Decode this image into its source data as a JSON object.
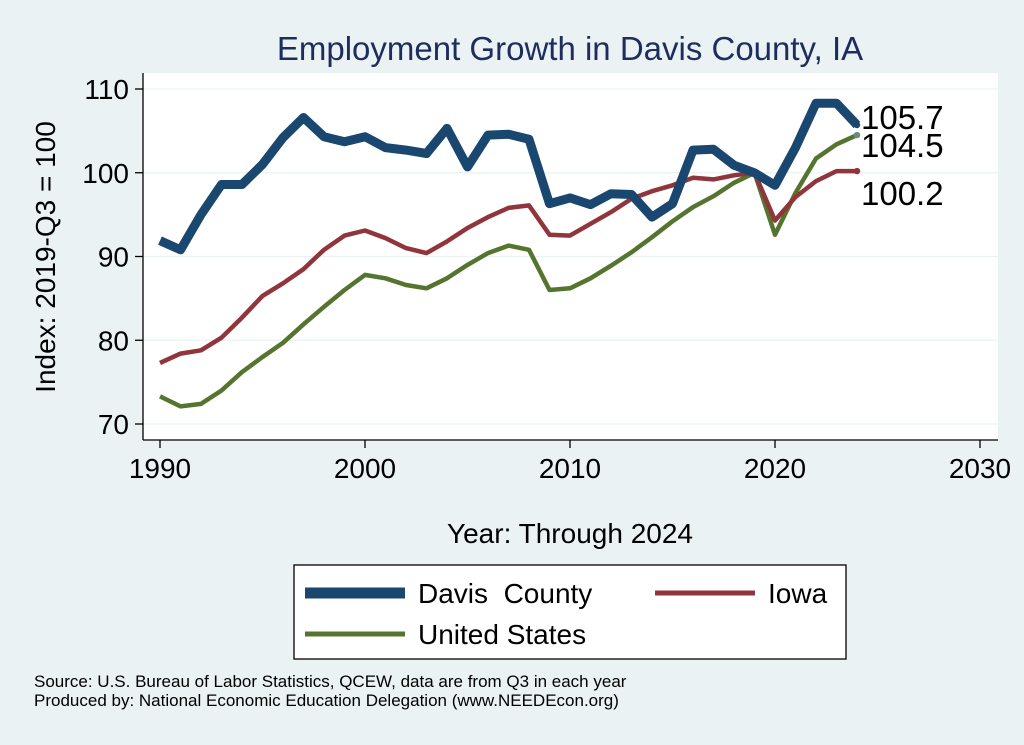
{
  "chart_data": {
    "type": "line",
    "title": "Employment Growth in Davis County, IA",
    "xlabel": "Year: Through 2024",
    "ylabel": "Index: 2019-Q3 = 100",
    "xlim": [
      1990,
      2030
    ],
    "ylim": [
      70,
      110
    ],
    "xticks": [
      1990,
      2000,
      2010,
      2020,
      2030
    ],
    "yticks": [
      70,
      80,
      90,
      100,
      110
    ],
    "grid": true,
    "legend_position": "bottom",
    "x": [
      1990,
      1991,
      1992,
      1993,
      1994,
      1995,
      1996,
      1997,
      1998,
      1999,
      2000,
      2001,
      2002,
      2003,
      2004,
      2005,
      2006,
      2007,
      2008,
      2009,
      2010,
      2011,
      2012,
      2013,
      2014,
      2015,
      2016,
      2017,
      2018,
      2019,
      2020,
      2021,
      2022,
      2023,
      2024
    ],
    "series": [
      {
        "name": "Davis  County",
        "color": "#1a476f",
        "end_label": "105.7",
        "values": [
          91.9,
          90.8,
          95.0,
          98.6,
          98.6,
          101.0,
          104.2,
          106.6,
          104.3,
          103.7,
          104.3,
          103.0,
          102.7,
          102.3,
          105.3,
          100.7,
          104.5,
          104.6,
          104.0,
          96.3,
          97.0,
          96.2,
          97.5,
          97.4,
          94.7,
          96.3,
          102.7,
          102.8,
          100.9,
          100.0,
          98.5,
          103.0,
          108.3,
          108.3,
          105.7
        ]
      },
      {
        "name": "Iowa",
        "color": "#90353b",
        "end_label": "100.2",
        "values": [
          77.3,
          78.4,
          78.8,
          80.3,
          82.7,
          85.3,
          86.8,
          88.5,
          90.8,
          92.5,
          93.1,
          92.2,
          91.0,
          90.4,
          91.8,
          93.4,
          94.7,
          95.8,
          96.1,
          92.6,
          92.5,
          93.9,
          95.3,
          96.9,
          97.8,
          98.5,
          99.4,
          99.2,
          99.7,
          100.0,
          94.3,
          97.1,
          99.0,
          100.2,
          100.2
        ]
      },
      {
        "name": "United States",
        "color": "#55752f",
        "end_label": "104.5",
        "values": [
          73.3,
          72.1,
          72.4,
          74.0,
          76.2,
          78.0,
          79.7,
          81.9,
          84.0,
          86.0,
          87.8,
          87.4,
          86.6,
          86.2,
          87.4,
          89.0,
          90.4,
          91.3,
          90.8,
          86.0,
          86.2,
          87.4,
          88.9,
          90.5,
          92.3,
          94.2,
          95.9,
          97.2,
          98.8,
          100.0,
          92.6,
          97.6,
          101.7,
          103.4,
          104.5
        ]
      }
    ]
  },
  "legend": {
    "labels": [
      "Davis  County",
      "Iowa",
      "United States"
    ]
  },
  "footer": {
    "source": "Source: U.S. Bureau of Labor Statistics, QCEW, data are from Q3 in each year",
    "produced": "Produced by: National Economic Education Delegation (www.NEEDEcon.org)"
  }
}
